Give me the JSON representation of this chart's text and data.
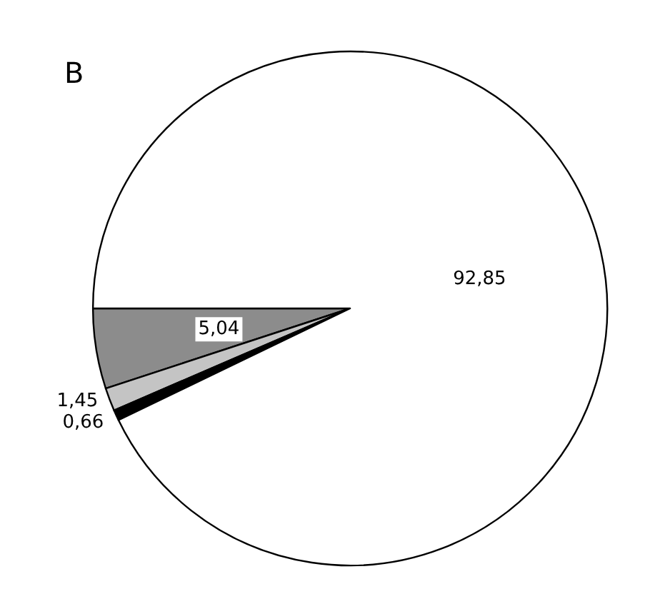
{
  "chart_data": {
    "type": "pie",
    "title": "B",
    "categories": [
      null,
      null,
      null,
      null
    ],
    "values": [
      5.04,
      1.45,
      0.66,
      92.85
    ],
    "value_labels": [
      "5,04",
      "1,45",
      "0,66",
      "92,85"
    ],
    "colors": [
      "#8c8c8c",
      "#c4c4c4",
      "#000000",
      "#ffffff"
    ]
  }
}
